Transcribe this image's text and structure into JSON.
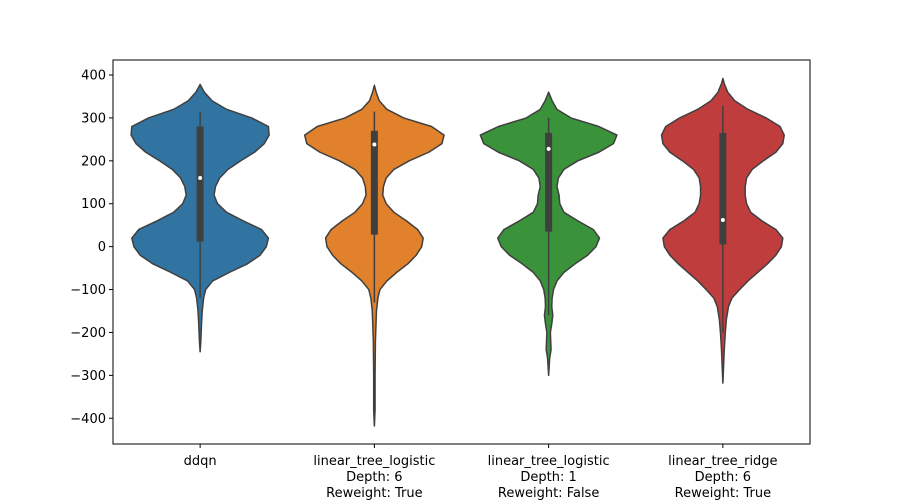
{
  "chart_data": {
    "type": "violin",
    "categories": [
      [
        "ddqn"
      ],
      [
        "linear_tree_logistic",
        "Depth: 6",
        "Reweight: True"
      ],
      [
        "linear_tree_logistic",
        "Depth: 1",
        "Reweight: False"
      ],
      [
        "linear_tree_ridge",
        "Depth: 6",
        "Reweight: True"
      ]
    ],
    "colors": [
      "#3274a1",
      "#e1812c",
      "#3a923a",
      "#c03d3e"
    ],
    "ylim": [
      -460,
      435
    ],
    "yticks": [
      -400,
      -300,
      -200,
      -100,
      0,
      100,
      200,
      300,
      400
    ],
    "ytick_labels": [
      "−400",
      "−300",
      "−200",
      "−100",
      "0",
      "100",
      "200",
      "300",
      "400"
    ],
    "violins": [
      {
        "min": -245,
        "max": 378,
        "q1": 12,
        "median": 160,
        "q3": 280,
        "whisker_low": -120,
        "whisker_high": 315,
        "density": [
          [
            -245,
            0.0
          ],
          [
            -220,
            0.01
          ],
          [
            -180,
            0.02
          ],
          [
            -150,
            0.03
          ],
          [
            -120,
            0.05
          ],
          [
            -100,
            0.08
          ],
          [
            -80,
            0.18
          ],
          [
            -60,
            0.42
          ],
          [
            -40,
            0.68
          ],
          [
            -20,
            0.86
          ],
          [
            0,
            0.95
          ],
          [
            20,
            0.98
          ],
          [
            40,
            0.88
          ],
          [
            60,
            0.62
          ],
          [
            80,
            0.38
          ],
          [
            100,
            0.25
          ],
          [
            120,
            0.2
          ],
          [
            140,
            0.22
          ],
          [
            160,
            0.28
          ],
          [
            180,
            0.4
          ],
          [
            200,
            0.58
          ],
          [
            220,
            0.78
          ],
          [
            240,
            0.92
          ],
          [
            260,
            0.99
          ],
          [
            280,
            0.98
          ],
          [
            300,
            0.74
          ],
          [
            320,
            0.38
          ],
          [
            340,
            0.17
          ],
          [
            360,
            0.06
          ],
          [
            378,
            0.0
          ]
        ]
      },
      {
        "min": -418,
        "max": 376,
        "q1": 28,
        "median": 238,
        "q3": 270,
        "whisker_low": -130,
        "whisker_high": 315,
        "density": [
          [
            -418,
            0.0
          ],
          [
            -380,
            0.01
          ],
          [
            -300,
            0.01
          ],
          [
            -220,
            0.015
          ],
          [
            -150,
            0.03
          ],
          [
            -120,
            0.05
          ],
          [
            -100,
            0.08
          ],
          [
            -80,
            0.18
          ],
          [
            -60,
            0.32
          ],
          [
            -40,
            0.48
          ],
          [
            -20,
            0.6
          ],
          [
            0,
            0.68
          ],
          [
            20,
            0.7
          ],
          [
            40,
            0.62
          ],
          [
            60,
            0.46
          ],
          [
            80,
            0.28
          ],
          [
            100,
            0.17
          ],
          [
            120,
            0.12
          ],
          [
            140,
            0.13
          ],
          [
            160,
            0.17
          ],
          [
            180,
            0.28
          ],
          [
            200,
            0.5
          ],
          [
            220,
            0.78
          ],
          [
            240,
            0.97
          ],
          [
            260,
            1.0
          ],
          [
            280,
            0.82
          ],
          [
            300,
            0.42
          ],
          [
            320,
            0.18
          ],
          [
            340,
            0.07
          ],
          [
            360,
            0.025
          ],
          [
            376,
            0.0
          ]
        ]
      },
      {
        "min": -300,
        "max": 360,
        "q1": 35,
        "median": 228,
        "q3": 265,
        "whisker_low": -160,
        "whisker_high": 300,
        "density": [
          [
            -300,
            0.0
          ],
          [
            -260,
            0.015
          ],
          [
            -240,
            0.035
          ],
          [
            -220,
            0.03
          ],
          [
            -200,
            0.025
          ],
          [
            -180,
            0.045
          ],
          [
            -160,
            0.06
          ],
          [
            -140,
            0.045
          ],
          [
            -120,
            0.05
          ],
          [
            -100,
            0.07
          ],
          [
            -80,
            0.12
          ],
          [
            -60,
            0.22
          ],
          [
            -40,
            0.38
          ],
          [
            -20,
            0.56
          ],
          [
            0,
            0.68
          ],
          [
            20,
            0.73
          ],
          [
            40,
            0.64
          ],
          [
            60,
            0.42
          ],
          [
            80,
            0.22
          ],
          [
            100,
            0.16
          ],
          [
            120,
            0.15
          ],
          [
            140,
            0.12
          ],
          [
            160,
            0.14
          ],
          [
            180,
            0.22
          ],
          [
            200,
            0.42
          ],
          [
            220,
            0.72
          ],
          [
            240,
            0.93
          ],
          [
            260,
            0.98
          ],
          [
            280,
            0.72
          ],
          [
            300,
            0.32
          ],
          [
            320,
            0.12
          ],
          [
            340,
            0.05
          ],
          [
            360,
            0.0
          ]
        ]
      },
      {
        "min": -318,
        "max": 392,
        "q1": 5,
        "median": 62,
        "q3": 265,
        "whisker_low": -200,
        "whisker_high": 328,
        "density": [
          [
            -318,
            0.0
          ],
          [
            -280,
            0.01
          ],
          [
            -240,
            0.02
          ],
          [
            -200,
            0.035
          ],
          [
            -170,
            0.05
          ],
          [
            -140,
            0.08
          ],
          [
            -120,
            0.13
          ],
          [
            -100,
            0.24
          ],
          [
            -80,
            0.36
          ],
          [
            -60,
            0.5
          ],
          [
            -40,
            0.64
          ],
          [
            -20,
            0.76
          ],
          [
            0,
            0.84
          ],
          [
            20,
            0.86
          ],
          [
            40,
            0.76
          ],
          [
            60,
            0.56
          ],
          [
            80,
            0.4
          ],
          [
            100,
            0.34
          ],
          [
            120,
            0.32
          ],
          [
            140,
            0.32
          ],
          [
            160,
            0.34
          ],
          [
            180,
            0.42
          ],
          [
            200,
            0.58
          ],
          [
            220,
            0.76
          ],
          [
            240,
            0.86
          ],
          [
            260,
            0.88
          ],
          [
            280,
            0.82
          ],
          [
            300,
            0.62
          ],
          [
            320,
            0.36
          ],
          [
            340,
            0.17
          ],
          [
            360,
            0.07
          ],
          [
            380,
            0.02
          ],
          [
            392,
            0.0
          ]
        ]
      }
    ]
  }
}
